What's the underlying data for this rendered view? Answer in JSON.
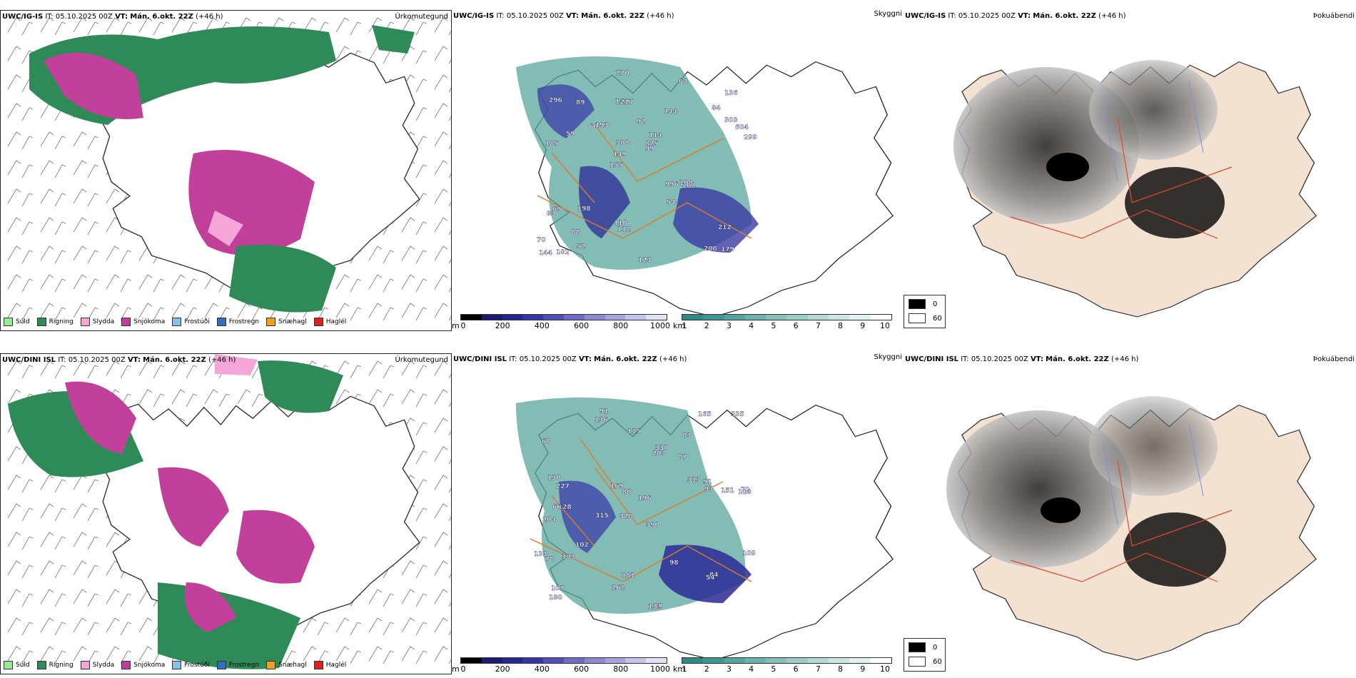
{
  "rows": [
    {
      "model": "UWC/IG-IS",
      "it_label": "IT:",
      "it_value": "05.10.2025 00Z",
      "vt_label": "VT:",
      "vt_value": "Mán. 6.okt. 22Z",
      "lead": "(+46 h)",
      "ceiling_labels": [
        "179",
        "185",
        "136",
        "155",
        "144",
        "182",
        "147",
        "92",
        "69",
        "193",
        "70",
        "88",
        "227",
        "114",
        "202",
        "296",
        "270",
        "299",
        "996",
        "303",
        "149",
        "110",
        "308",
        "89",
        "64",
        "198",
        "200",
        "212",
        "108",
        "123",
        "60",
        "59",
        "54",
        "52",
        "604",
        "825",
        "144",
        "112",
        "99",
        "83",
        "84"
      ]
    },
    {
      "model": "UWC/DINI ISL",
      "it_label": "IT:",
      "it_value": "05.10.2025 00Z",
      "vt_label": "VT:",
      "vt_value": "Mán. 6.okt. 22Z",
      "lead": "(+46 h)",
      "ceiling_labels": [
        "91",
        "83",
        "118",
        "320",
        "390",
        "128",
        "68",
        "87",
        "204",
        "203",
        "196",
        "180",
        "136",
        "315",
        "153",
        "87",
        "181",
        "165",
        "313",
        "102",
        "227",
        "66",
        "72",
        "151",
        "133",
        "130",
        "80",
        "93",
        "84",
        "78",
        "54",
        "337",
        "303",
        "169",
        "98",
        "109",
        "91",
        "262",
        "335",
        "115",
        "107"
      ]
    }
  ],
  "panel_titles": {
    "precip": "Úrkomutegund",
    "ceiling": "Skyggni",
    "cloud": "Þokuábendi"
  },
  "precip_legend": [
    {
      "label": "Súld",
      "color": "#90ee90"
    },
    {
      "label": "Rigning",
      "color": "#2e8b57"
    },
    {
      "label": "Slydda",
      "color": "#f4a6d8"
    },
    {
      "label": "Snjókoma",
      "color": "#c0409a"
    },
    {
      "label": "Frostúði",
      "color": "#87bfef"
    },
    {
      "label": "Frostregn",
      "color": "#2f6fbf"
    },
    {
      "label": "Snæhagl",
      "color": "#f0a020"
    },
    {
      "label": "Haglél",
      "color": "#e02020"
    }
  ],
  "ceiling_bar": {
    "unit": "m",
    "ticks": [
      "0",
      "200",
      "400",
      "600",
      "800",
      "1000"
    ],
    "colors": [
      "#000000",
      "#1a1a70",
      "#26268f",
      "#3535a8",
      "#5050b8",
      "#6d6dc6",
      "#8a8ad2",
      "#a6a6de",
      "#c4c4ea",
      "#e2e2f5"
    ]
  },
  "vis_bar": {
    "unit": "km",
    "ticks": [
      "1",
      "2",
      "3",
      "4",
      "5",
      "6",
      "7",
      "8",
      "9",
      "10"
    ],
    "colors": [
      "#2f8a80",
      "#3f9890",
      "#55a59e",
      "#6cb3ad",
      "#85c0bb",
      "#9ecdc9",
      "#b6dad7",
      "#cde6e4",
      "#e3f1f0",
      "#ffffff"
    ]
  },
  "cloud_legend": [
    {
      "label": "0",
      "color": "#000000"
    },
    {
      "label": "60",
      "color": "#ffffff"
    }
  ],
  "colors": {
    "rain": "#2e8b57",
    "snow": "#c0409a",
    "sleet": "#f4a6d8",
    "drizzle": "#90ee90",
    "vis": "#5aa59b",
    "ceiling": "#2a2a95",
    "roads": "#e07a2a",
    "land": "#f3e1d2",
    "rivers": "#7a8fe0"
  }
}
